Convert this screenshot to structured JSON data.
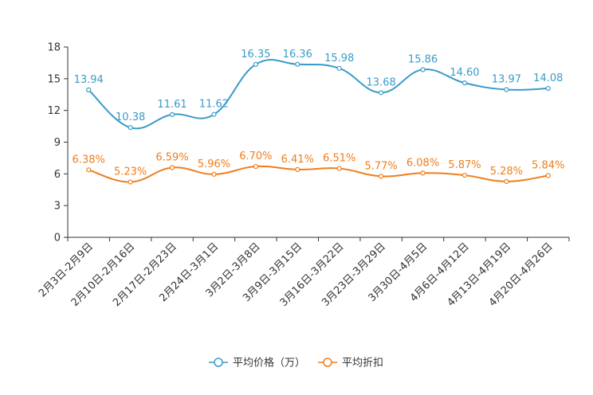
{
  "chart_data": {
    "type": "line",
    "categories": [
      "2月3日-2月9日",
      "2月10日-2月16日",
      "2月17日-2月23日",
      "2月24日-3月1日",
      "3月2日-3月8日",
      "3月9日-3月15日",
      "3月16日-3月22日",
      "3月23日-3月29日",
      "3月30日-4月5日",
      "4月6日-4月12日",
      "4月13日-4月19日",
      "4月20日-4月26日"
    ],
    "ylim": [
      0,
      18
    ],
    "yticks": [
      0,
      3,
      6,
      9,
      12,
      15,
      18
    ],
    "series": [
      {
        "name": "平均价格（万）",
        "color": "#3a9bc8",
        "values": [
          13.94,
          10.38,
          11.61,
          11.62,
          16.35,
          16.36,
          15.98,
          13.68,
          15.86,
          14.6,
          13.97,
          14.08
        ],
        "labels": [
          "13.94",
          "10.38",
          "11.61",
          "11.62",
          "16.35",
          "16.36",
          "15.98",
          "13.68",
          "15.86",
          "14.60",
          "13.97",
          "14.08"
        ]
      },
      {
        "name": "平均折扣",
        "color": "#f07d1a",
        "values": [
          6.38,
          5.23,
          6.59,
          5.96,
          6.7,
          6.41,
          6.51,
          5.77,
          6.08,
          5.87,
          5.28,
          5.84
        ],
        "labels": [
          "6.38%",
          "5.23%",
          "6.59%",
          "5.96%",
          "6.70%",
          "6.41%",
          "6.51%",
          "5.77%",
          "6.08%",
          "5.87%",
          "5.28%",
          "5.84%"
        ]
      }
    ],
    "legend_position": "bottom-center"
  }
}
